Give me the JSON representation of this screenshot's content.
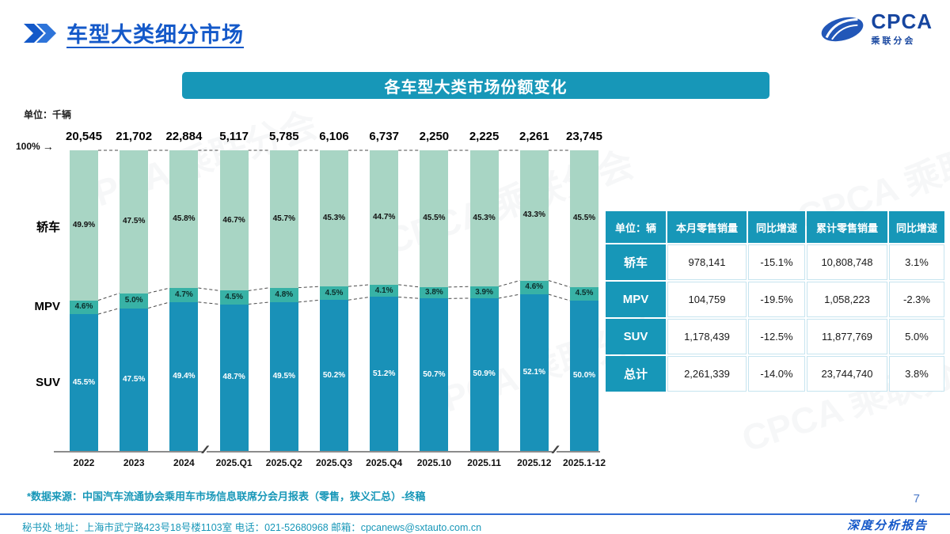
{
  "page": {
    "title": "车型大类细分市场",
    "banner_title": "各车型大类市场份额变化",
    "unit_label": "单位：千辆",
    "axis_top_label": "100%",
    "arrow_icon": "→",
    "axis_break_glyph": "∕∕",
    "source_note": "*数据来源：中国汽车流通协会乘用车市场信息联席分会月报表（零售，狭义汇总）-终稿",
    "footer_text": "秘书处   地址：上海市武宁路423号18号楼1103室   电话：021-52680968    邮箱：cpcanews@sxtauto.com.cn",
    "report_label": "深度分析报告",
    "page_number": "7",
    "watermark": "CPCA 乘联分会"
  },
  "logo": {
    "acronym": "CPCA",
    "subtitle": "乘联分会"
  },
  "chart_data": {
    "type": "bar",
    "stacked": true,
    "title": "各车型大类市场份额变化",
    "unit": "千辆",
    "ylim": [
      0,
      100
    ],
    "legend_position": "left",
    "categories": [
      "2022",
      "2023",
      "2024",
      "2025.Q1",
      "2025.Q2",
      "2025.Q3",
      "2025.Q4",
      "2025.10",
      "2025.11",
      "2025.12",
      "2025.1-12"
    ],
    "totals": [
      "20,545",
      "21,702",
      "22,884",
      "5,117",
      "5,785",
      "6,106",
      "6,737",
      "2,250",
      "2,225",
      "2,261",
      "23,745"
    ],
    "axis_breaks_after": [
      2,
      9
    ],
    "series": [
      {
        "name": "轿车",
        "key": "sedan",
        "color": "#A8D5C4",
        "text_color": "#111111",
        "values": [
          49.9,
          47.5,
          45.8,
          46.7,
          45.7,
          45.3,
          44.7,
          45.5,
          45.3,
          43.3,
          45.5
        ]
      },
      {
        "name": "MPV",
        "key": "mpv",
        "color": "#38B2A6",
        "text_color": "#0d2e2b",
        "values": [
          4.6,
          5.0,
          4.7,
          4.5,
          4.8,
          4.5,
          4.1,
          3.8,
          3.9,
          4.6,
          4.5
        ]
      },
      {
        "name": "SUV",
        "key": "suv",
        "color": "#1991B8",
        "text_color": "#ffffff",
        "values": [
          45.5,
          47.5,
          49.4,
          48.7,
          49.5,
          50.2,
          51.2,
          50.7,
          50.9,
          52.1,
          50.0
        ]
      }
    ]
  },
  "table": {
    "headers": [
      "单位：辆",
      "本月零售销量",
      "同比增速",
      "累计零售销量",
      "同比增速"
    ],
    "rows": [
      {
        "label": "轿车",
        "cells": [
          "978,141",
          "-15.1%",
          "10,808,748",
          "3.1%"
        ]
      },
      {
        "label": "MPV",
        "cells": [
          "104,759",
          "-19.5%",
          "1,058,223",
          "-2.3%"
        ]
      },
      {
        "label": "SUV",
        "cells": [
          "1,178,439",
          "-12.5%",
          "11,877,769",
          "5.0%"
        ]
      },
      {
        "label": "总计",
        "cells": [
          "2,261,339",
          "-14.0%",
          "23,744,740",
          "3.8%"
        ]
      }
    ]
  }
}
